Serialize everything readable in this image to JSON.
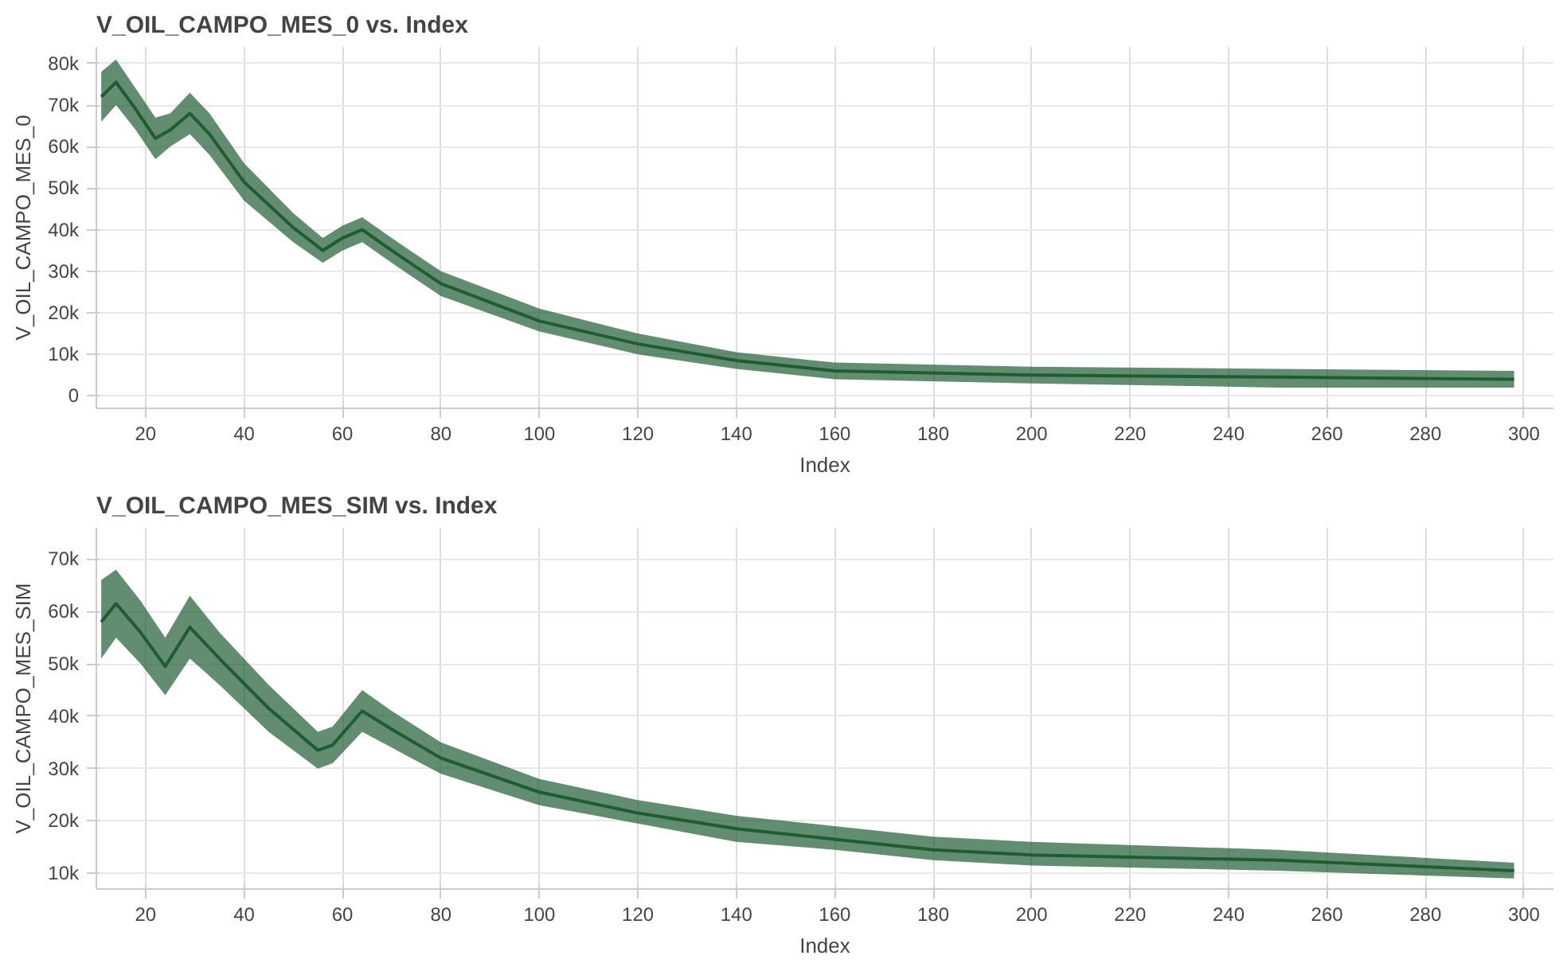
{
  "chart_data": [
    {
      "type": "line",
      "title": "V_OIL_CAMPO_MES_0 vs. Index",
      "xlabel": "Index",
      "ylabel": "V_OIL_CAMPO_MES_0",
      "xlim": [
        10,
        306
      ],
      "ylim": [
        -3000,
        84000
      ],
      "xticks": [
        20,
        40,
        60,
        80,
        100,
        120,
        140,
        160,
        180,
        200,
        220,
        240,
        260,
        280,
        300
      ],
      "yticks": [
        0,
        {
          "value": 10000,
          "label": "10k"
        },
        {
          "value": 20000,
          "label": "20k"
        },
        {
          "value": 30000,
          "label": "30k"
        },
        {
          "value": 40000,
          "label": "40k"
        },
        {
          "value": 50000,
          "label": "50k"
        },
        {
          "value": 60000,
          "label": "60k"
        },
        {
          "value": 70000,
          "label": "70k"
        },
        {
          "value": 80000,
          "label": "80k"
        }
      ],
      "grid": true,
      "marker": "none",
      "line_style": "solid",
      "series": [
        {
          "color": "#1f5c33",
          "x": [
            11,
            14,
            18,
            22,
            25,
            29,
            33,
            40,
            50,
            56,
            60,
            64,
            70,
            80,
            100,
            120,
            140,
            160,
            200,
            250,
            298
          ],
          "values": [
            72000,
            75500,
            69000,
            62000,
            64000,
            68000,
            63000,
            51500,
            40500,
            35000,
            38000,
            40000,
            35000,
            27000,
            18000,
            12500,
            8500,
            6000,
            5000,
            4500,
            4000
          ],
          "lower": [
            66000,
            70000,
            64000,
            57000,
            60000,
            63000,
            58000,
            47000,
            37000,
            32000,
            35000,
            37000,
            32000,
            24000,
            15500,
            10000,
            6500,
            4000,
            3000,
            2000,
            2000
          ],
          "upper": [
            78000,
            81000,
            74000,
            67000,
            68000,
            73000,
            68000,
            56000,
            44000,
            38000,
            41000,
            43000,
            38000,
            30000,
            21000,
            15000,
            10500,
            8000,
            7000,
            6500,
            6000
          ]
        }
      ]
    },
    {
      "type": "line",
      "title": "V_OIL_CAMPO_MES_SIM vs. Index",
      "xlabel": "Index",
      "ylabel": "V_OIL_CAMPO_MES_SIM",
      "xlim": [
        10,
        306
      ],
      "ylim": [
        7000,
        76000
      ],
      "xticks": [
        20,
        40,
        60,
        80,
        100,
        120,
        140,
        160,
        180,
        200,
        220,
        240,
        260,
        280,
        300
      ],
      "yticks": [
        {
          "value": 10000,
          "label": "10k"
        },
        {
          "value": 20000,
          "label": "20k"
        },
        {
          "value": 30000,
          "label": "30k"
        },
        {
          "value": 40000,
          "label": "40k"
        },
        {
          "value": 50000,
          "label": "50k"
        },
        {
          "value": 60000,
          "label": "60k"
        },
        {
          "value": 70000,
          "label": "70k"
        }
      ],
      "grid": true,
      "marker": "none",
      "line_style": "solid",
      "series": [
        {
          "color": "#1f5c33",
          "x": [
            11,
            14,
            19,
            24,
            29,
            35,
            45,
            55,
            58,
            64,
            70,
            80,
            100,
            120,
            140,
            160,
            180,
            200,
            250,
            298
          ],
          "values": [
            58000,
            61500,
            56000,
            49500,
            57000,
            51000,
            41500,
            33500,
            34500,
            41000,
            37500,
            32000,
            25500,
            21500,
            18500,
            16500,
            14500,
            13500,
            12500,
            10500
          ],
          "lower": [
            51000,
            55000,
            50000,
            44000,
            51000,
            46000,
            37000,
            30000,
            31000,
            37000,
            34000,
            29000,
            23000,
            19500,
            16000,
            14500,
            12500,
            11500,
            10500,
            9000
          ],
          "upper": [
            66000,
            68000,
            62000,
            55000,
            63000,
            56000,
            46000,
            37000,
            38000,
            45000,
            41000,
            35000,
            28000,
            24000,
            21000,
            19000,
            17000,
            16000,
            14500,
            12000
          ]
        }
      ]
    }
  ]
}
